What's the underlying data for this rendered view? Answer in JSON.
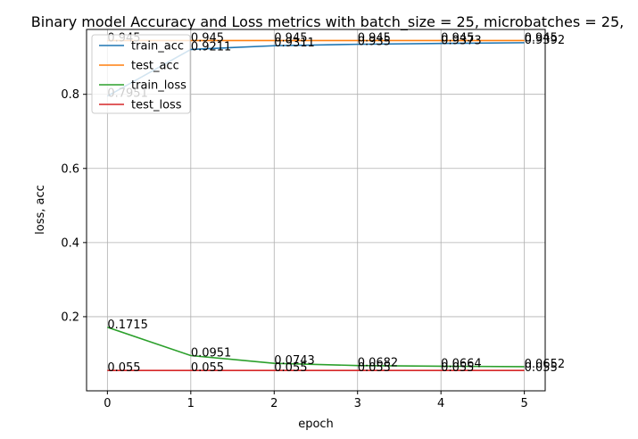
{
  "chart_data": {
    "type": "line",
    "title": "Binary model Accuracy and Loss metrics with batch_size = 25, microbatches = 25,",
    "xlabel": "epoch",
    "ylabel": "loss, acc",
    "x": [
      0,
      1,
      2,
      3,
      4,
      5
    ],
    "xlim": [
      -0.25,
      5.25
    ],
    "ylim": [
      0.0,
      0.975
    ],
    "xticks": [
      "0",
      "1",
      "2",
      "3",
      "4",
      "5"
    ],
    "yticks": [
      0.2,
      0.4,
      0.6,
      0.8
    ],
    "ytick_labels": [
      "0.2",
      "0.4",
      "0.6",
      "0.8"
    ],
    "grid": true,
    "legend_position": "top-left",
    "series": [
      {
        "name": "train_acc",
        "color": "#1f77b4",
        "values": [
          0.7951,
          0.9211,
          0.9311,
          0.935,
          0.9373,
          0.9392
        ],
        "labels": [
          "0.7951",
          "0.9211",
          "0.9311",
          "0.935",
          "0.9373",
          "0.9392"
        ]
      },
      {
        "name": "test_acc",
        "color": "#ff7f0e",
        "values": [
          0.945,
          0.945,
          0.945,
          0.945,
          0.945,
          0.945
        ],
        "labels": [
          "0.945",
          "0.945",
          "0.945",
          "0.945",
          "0.945",
          "0.945"
        ]
      },
      {
        "name": "train_loss",
        "color": "#2ca02c",
        "values": [
          0.1715,
          0.0951,
          0.0743,
          0.0682,
          0.0664,
          0.0652
        ],
        "labels": [
          "0.1715",
          "0.0951",
          "0.0743",
          "0.0682",
          "0.0664",
          "0.0652"
        ]
      },
      {
        "name": "test_loss",
        "color": "#d62728",
        "values": [
          0.055,
          0.055,
          0.055,
          0.055,
          0.055,
          0.055
        ],
        "labels": [
          "0.055",
          "0.055",
          "0.055",
          "0.055",
          "0.055",
          "0.055"
        ]
      }
    ]
  }
}
